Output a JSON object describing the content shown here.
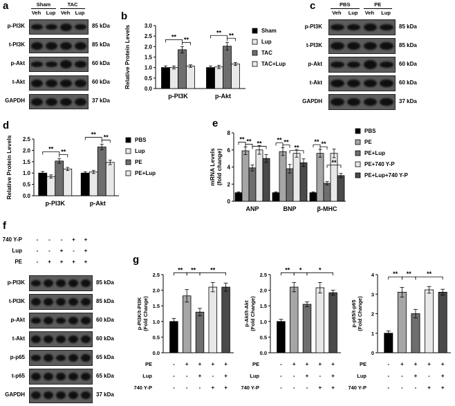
{
  "panels": {
    "a": {
      "letter": "a",
      "groups": [
        "Sham",
        "TAC"
      ],
      "lanes": [
        "Veh",
        "Lup",
        "Veh",
        "Lup"
      ],
      "blots": [
        {
          "label": "p-PI3K",
          "kda": "85 kDa"
        },
        {
          "label": "t-PI3K",
          "kda": "85 kDa"
        },
        {
          "label": "p-Akt",
          "kda": "60 kDa"
        },
        {
          "label": "t-Akt",
          "kda": "60 kDa"
        },
        {
          "label": "GAPDH",
          "kda": "37 kDa"
        }
      ]
    },
    "c": {
      "letter": "c",
      "groups": [
        "PBS",
        "PE"
      ],
      "lanes": [
        "Veh",
        "Lup",
        "Veh",
        "Lup"
      ],
      "blots": [
        {
          "label": "p-PI3K",
          "kda": "85 kDa"
        },
        {
          "label": "t-PI3K",
          "kda": "85 kDa"
        },
        {
          "label": "p-Akt",
          "kda": "60 kDa"
        },
        {
          "label": "t-Akt",
          "kda": "60 kDa"
        },
        {
          "label": "GAPDH",
          "kda": "37 kDa"
        }
      ]
    },
    "f": {
      "letter": "f",
      "conditions": [
        {
          "label": "740 Y-P",
          "signs": [
            "-",
            "-",
            "-",
            "+",
            "+"
          ]
        },
        {
          "label": "Lup",
          "signs": [
            "-",
            "-",
            "+",
            "-",
            "+"
          ]
        },
        {
          "label": "PE",
          "signs": [
            "-",
            "+",
            "+",
            "+",
            "+"
          ]
        }
      ],
      "blots": [
        {
          "label": "p-PI3K",
          "kda": "85 kDa"
        },
        {
          "label": "t-PI3K",
          "kda": "85 kDa"
        },
        {
          "label": "p-Akt",
          "kda": "60 kDa"
        },
        {
          "label": "t-Akt",
          "kda": "60 kDa"
        },
        {
          "label": "p-p65",
          "kda": "65 kDa"
        },
        {
          "label": "t-p65",
          "kda": "65 kDa"
        },
        {
          "label": "GAPDH",
          "kda": "37 kDa"
        }
      ]
    },
    "b_letter": "b",
    "d_letter": "d",
    "e_letter": "e",
    "g_letter": "g"
  },
  "colors": {
    "black": "#000000",
    "dark": "#6e6e6e",
    "mid": "#a6a6a6",
    "light": "#e8e8e8",
    "darker": "#4a4a4a"
  },
  "chart_data": [
    {
      "id": "b",
      "type": "bar",
      "categories": [
        "p-PI3K",
        "p-Akt"
      ],
      "ylabel": "Relative Protein Levels",
      "ylim": [
        0,
        3.0
      ],
      "yticks": [
        "0.0",
        "0.5",
        "1.0",
        "1.5",
        "2.0",
        "2.5",
        "3.0"
      ],
      "legend_position": "right",
      "series": [
        {
          "name": "Sham",
          "values": [
            1.0,
            1.0
          ],
          "errors": [
            0.08,
            0.07
          ]
        },
        {
          "name": "Lup",
          "values": [
            1.0,
            1.03
          ],
          "errors": [
            0.07,
            0.08
          ]
        },
        {
          "name": "TAC",
          "values": [
            1.85,
            2.02
          ],
          "errors": [
            0.15,
            0.18
          ]
        },
        {
          "name": "TAC+Lup",
          "values": [
            1.07,
            1.17
          ],
          "errors": [
            0.06,
            0.07
          ]
        }
      ],
      "significance": [
        "**",
        "**",
        "**",
        "**"
      ]
    },
    {
      "id": "d",
      "type": "bar",
      "categories": [
        "p-PI3K",
        "p-Akt"
      ],
      "ylabel": "Relative Protein Levels",
      "ylim": [
        0,
        2.5
      ],
      "yticks": [
        "0.0",
        "0.5",
        "1.0",
        "1.5",
        "2.0",
        "2.5"
      ],
      "legend_position": "right",
      "series": [
        {
          "name": "PBS",
          "values": [
            1.0,
            1.0
          ],
          "errors": [
            0.07,
            0.06
          ]
        },
        {
          "name": "Lup",
          "values": [
            0.85,
            1.05
          ],
          "errors": [
            0.07,
            0.07
          ]
        },
        {
          "name": "PE",
          "values": [
            1.53,
            2.15
          ],
          "errors": [
            0.1,
            0.12
          ]
        },
        {
          "name": "PE+Lup",
          "values": [
            1.18,
            1.47
          ],
          "errors": [
            0.07,
            0.1
          ]
        }
      ],
      "significance": [
        "**",
        "**",
        "**",
        "**"
      ]
    },
    {
      "id": "e",
      "type": "bar",
      "categories": [
        "ANP",
        "BNP",
        "β-MHC"
      ],
      "ylabel": "mRNA Levels\n(fold change)",
      "ylim": [
        0,
        8
      ],
      "yticks": [
        "0",
        "2",
        "4",
        "6",
        "8"
      ],
      "legend_position": "right",
      "series": [
        {
          "name": "PBS",
          "values": [
            1.0,
            1.0,
            1.0
          ],
          "errors": [
            0.1,
            0.1,
            0.1
          ]
        },
        {
          "name": "PE",
          "values": [
            5.9,
            5.8,
            5.6
          ],
          "errors": [
            0.45,
            0.45,
            0.45
          ]
        },
        {
          "name": "PE+Lup",
          "values": [
            3.9,
            3.8,
            2.1
          ],
          "errors": [
            0.35,
            0.5,
            0.2
          ]
        },
        {
          "name": "PE+740 Y-P",
          "values": [
            6.0,
            5.6,
            5.6
          ],
          "errors": [
            0.5,
            0.45,
            0.5
          ]
        },
        {
          "name": "PE+Lup+740 Y-P",
          "values": [
            5.0,
            4.5,
            3.0
          ],
          "errors": [
            0.45,
            0.45,
            0.25
          ]
        }
      ],
      "significance": [
        "**",
        "**",
        "**",
        "**",
        "**",
        "**",
        "**",
        "**",
        "**"
      ]
    },
    {
      "id": "g1",
      "type": "bar",
      "ylabel": "p-PI3K/t-PI3K\n(Fold Change)",
      "ylim": [
        0,
        2.5
      ],
      "yticks": [
        "0.0",
        "0.5",
        "1.0",
        "1.5",
        "2.0",
        "2.5"
      ],
      "values": [
        1.0,
        1.82,
        1.3,
        2.1,
        2.1
      ],
      "errors": [
        0.1,
        0.2,
        0.12,
        0.15,
        0.13
      ],
      "significance": [
        "**",
        "**",
        "**"
      ],
      "rows": [
        {
          "label": "PE",
          "signs": [
            "-",
            "+",
            "+",
            "+",
            "+"
          ]
        },
        {
          "label": "Lup",
          "signs": [
            "-",
            "-",
            "+",
            "-",
            "+"
          ]
        },
        {
          "label": "740 Y-P",
          "signs": [
            "-",
            "-",
            "-",
            "+",
            "+"
          ]
        }
      ]
    },
    {
      "id": "g2",
      "type": "bar",
      "ylabel": "p-Akt/t-Akt\n(Fold Change)",
      "ylim": [
        0,
        2.5
      ],
      "yticks": [
        "0.0",
        "0.5",
        "1.0",
        "1.5",
        "2.0",
        "2.5"
      ],
      "values": [
        1.0,
        2.1,
        1.55,
        2.08,
        1.92
      ],
      "errors": [
        0.07,
        0.15,
        0.08,
        0.17,
        0.08
      ],
      "significance": [
        "**",
        "*",
        "*"
      ],
      "rows": [
        {
          "label": "PE",
          "signs": [
            "-",
            "+",
            "+",
            "+",
            "+"
          ]
        },
        {
          "label": "Lup",
          "signs": [
            "-",
            "-",
            "+",
            "-",
            "+"
          ]
        },
        {
          "label": "740 Y-P",
          "signs": [
            "-",
            "-",
            "-",
            "+",
            "+"
          ]
        }
      ]
    },
    {
      "id": "g3",
      "type": "bar",
      "ylabel": "p-p65/t-p65\n(Fold Change)",
      "ylim": [
        0,
        4
      ],
      "yticks": [
        "0",
        "1",
        "2",
        "3",
        "4"
      ],
      "values": [
        1.0,
        3.1,
        2.0,
        3.22,
        3.1
      ],
      "errors": [
        0.12,
        0.25,
        0.22,
        0.17,
        0.15
      ],
      "significance": [
        "**",
        "**",
        "**"
      ],
      "rows": [
        {
          "label": "PE",
          "signs": [
            "-",
            "+",
            "+",
            "+",
            "+"
          ]
        },
        {
          "label": "Lup",
          "signs": [
            "-",
            "-",
            "+",
            "-",
            "+"
          ]
        },
        {
          "label": "740 Y-P",
          "signs": [
            "-",
            "-",
            "-",
            "+",
            "+"
          ]
        }
      ]
    }
  ]
}
